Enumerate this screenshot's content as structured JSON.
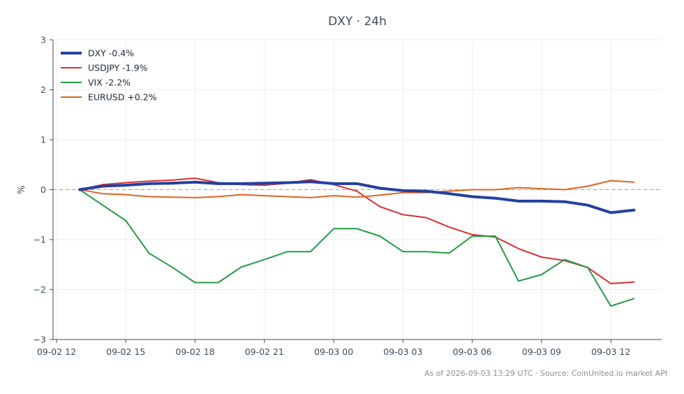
{
  "chart_data": {
    "type": "line",
    "title": "DXY · 24h",
    "ylabel": "%",
    "xlabel": "",
    "ylim": [
      -3,
      3
    ],
    "yticks": [
      3,
      2,
      1,
      0,
      -1,
      -2,
      -3
    ],
    "ytick_labels": [
      "3",
      "2",
      "1",
      "0",
      "−1",
      "−2",
      "−3"
    ],
    "xticks": [
      {
        "t": 0,
        "label": "09-02 12"
      },
      {
        "t": 3,
        "label": "09-02 15"
      },
      {
        "t": 6,
        "label": "09-02 18"
      },
      {
        "t": 9,
        "label": "09-02 21"
      },
      {
        "t": 12,
        "label": "09-03 00"
      },
      {
        "t": 15,
        "label": "09-03 03"
      },
      {
        "t": 18,
        "label": "09-03 06"
      },
      {
        "t": 21,
        "label": "09-03 09"
      },
      {
        "t": 24,
        "label": "09-03 12"
      }
    ],
    "xlim_hours_from_first_tick": [
      -0.15,
      26.2
    ],
    "x": [
      1,
      2,
      3,
      4,
      5,
      6,
      7,
      8,
      9,
      10,
      11,
      12,
      13,
      14,
      15,
      16,
      17,
      18,
      19,
      20,
      21,
      22,
      23,
      24,
      25
    ],
    "x_note": "hours after 09-02 12:00, i.e. 09-02 13:00 … 09-03 13:00",
    "zero_line": true,
    "grid": true,
    "legend_position": "top-left",
    "series": [
      {
        "name": "DXY -0.4%",
        "color": "#2340a0",
        "width": 4,
        "values": [
          0.0,
          0.07,
          0.09,
          0.12,
          0.13,
          0.15,
          0.12,
          0.12,
          0.13,
          0.14,
          0.16,
          0.12,
          0.12,
          0.03,
          -0.02,
          -0.03,
          -0.08,
          -0.14,
          -0.17,
          -0.23,
          -0.23,
          -0.24,
          -0.31,
          -0.46,
          -0.41
        ]
      },
      {
        "name": "USDJPY -1.9%",
        "color": "#d62f2f",
        "width": 2,
        "values": [
          0.0,
          0.1,
          0.14,
          0.17,
          0.19,
          0.23,
          0.14,
          0.1,
          0.09,
          0.13,
          0.2,
          0.1,
          -0.03,
          -0.34,
          -0.5,
          -0.56,
          -0.75,
          -0.9,
          -0.95,
          -1.18,
          -1.35,
          -1.42,
          -1.56,
          -1.88,
          -1.85
        ]
      },
      {
        "name": "VIX -2.2%",
        "color": "#239a45",
        "width": 2,
        "values": [
          0.0,
          -0.31,
          -0.62,
          -1.27,
          -1.55,
          -1.86,
          -1.86,
          -1.55,
          -1.4,
          -1.24,
          -1.24,
          -0.78,
          -0.78,
          -0.93,
          -1.24,
          -1.24,
          -1.27,
          -0.93,
          -0.93,
          -1.83,
          -1.7,
          -1.4,
          -1.56,
          -2.33,
          -2.18
        ]
      },
      {
        "name": "EURUSD +0.2%",
        "color": "#de6421",
        "width": 2,
        "values": [
          0.0,
          -0.08,
          -0.1,
          -0.14,
          -0.15,
          -0.16,
          -0.14,
          -0.1,
          -0.12,
          -0.14,
          -0.16,
          -0.12,
          -0.15,
          -0.11,
          -0.06,
          -0.06,
          -0.03,
          0.0,
          0.0,
          0.04,
          0.02,
          0.0,
          0.07,
          0.18,
          0.15
        ]
      }
    ],
    "footer": "As of 2026-09-03 13:29 UTC · Source: CoinUnited.io market API"
  }
}
